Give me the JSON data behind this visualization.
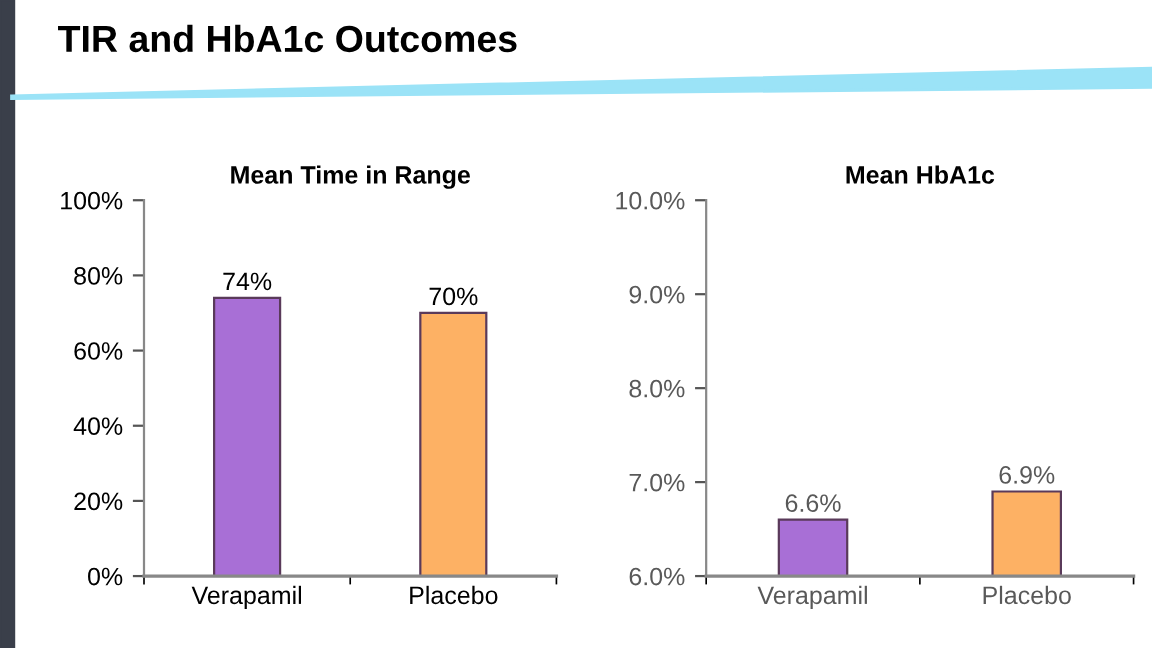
{
  "chart_data": [
    {
      "type": "bar",
      "title": "Mean Time in Range",
      "annotations": [
        "TIR and HbA1c Outcomes"
      ],
      "categories": [
        "Verapamil",
        "Placebo"
      ],
      "values": [
        74,
        70
      ],
      "colors": [
        "#a86fd6",
        "#fdb164"
      ],
      "value_labels": [
        "74%",
        "70%"
      ],
      "ylim": [
        0,
        100
      ],
      "yticks": [
        {
          "value": 0,
          "label": "0%"
        },
        {
          "value": 20,
          "label": "20%"
        },
        {
          "value": 40,
          "label": "40%"
        },
        {
          "value": 60,
          "label": "60%"
        },
        {
          "value": 80,
          "label": "80%"
        },
        {
          "value": 100,
          "label": "100%"
        }
      ],
      "grid": false
    },
    {
      "type": "bar",
      "title": "Mean HbA1c",
      "categories": [
        "Verapamil",
        "Placebo"
      ],
      "values": [
        6.6,
        6.9
      ],
      "colors": [
        "#a86fd6",
        "#fdb164"
      ],
      "value_labels": [
        "6.6%",
        "6.9%"
      ],
      "ylim": [
        6,
        10
      ],
      "yticks": [
        {
          "value": 6,
          "label": "6.0%"
        },
        {
          "value": 7,
          "label": "7.0%"
        },
        {
          "value": 8,
          "label": "8.0%"
        },
        {
          "value": 9,
          "label": "9.0%"
        },
        {
          "value": 10,
          "label": "10.0%"
        }
      ],
      "grid": false
    }
  ]
}
